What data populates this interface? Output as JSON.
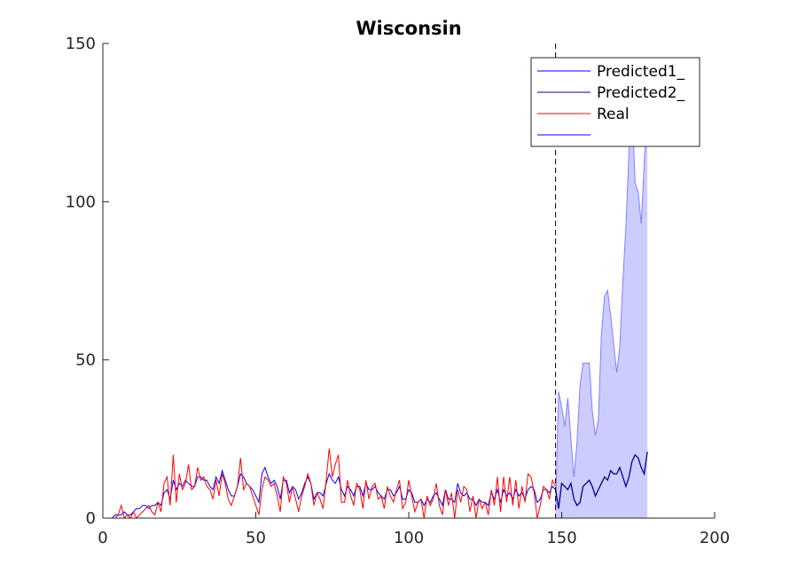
{
  "chart_data": {
    "type": "line",
    "title": "Wisconsin",
    "xlabel": "",
    "ylabel": "",
    "xlim": [
      0,
      200
    ],
    "ylim": [
      0,
      150
    ],
    "x_ticks": [
      0,
      50,
      100,
      150,
      200
    ],
    "y_ticks": [
      0,
      50,
      100,
      150
    ],
    "grid": false,
    "legend_position": "top-right",
    "forecast_start": 148,
    "colors": {
      "predicted1": "#0000ff",
      "predicted2": "#00008b",
      "real": "#ff0000",
      "band_fill": "#ccccff",
      "band_edge": "#8080ff",
      "divider": "#000000"
    },
    "series": [
      {
        "key": "real",
        "name": "Real",
        "x": [
          1,
          2,
          3,
          4,
          5,
          6,
          7,
          8,
          9,
          10,
          11,
          12,
          13,
          14,
          15,
          16,
          17,
          18,
          19,
          20,
          21,
          22,
          23,
          24,
          25,
          26,
          27,
          28,
          29,
          30,
          31,
          32,
          33,
          34,
          35,
          36,
          37,
          38,
          39,
          40,
          41,
          42,
          43,
          44,
          45,
          46,
          47,
          48,
          49,
          50,
          51,
          52,
          53,
          54,
          55,
          56,
          57,
          58,
          59,
          60,
          61,
          62,
          63,
          64,
          65,
          66,
          67,
          68,
          69,
          70,
          71,
          72,
          73,
          74,
          75,
          76,
          77,
          78,
          79,
          80,
          81,
          82,
          83,
          84,
          85,
          86,
          87,
          88,
          89,
          90,
          91,
          92,
          93,
          94,
          95,
          96,
          97,
          98,
          99,
          100,
          101,
          102,
          103,
          104,
          105,
          106,
          107,
          108,
          109,
          110,
          111,
          112,
          113,
          114,
          115,
          116,
          117,
          118,
          119,
          120,
          121,
          122,
          123,
          124,
          125,
          126,
          127,
          128,
          129,
          130,
          131,
          132,
          133,
          134,
          135,
          136,
          137,
          138,
          139,
          140,
          141,
          142,
          143,
          144,
          145,
          146,
          147,
          148
        ],
        "values": [
          0,
          0,
          0,
          0,
          1,
          4,
          0,
          1,
          0,
          2,
          0,
          1,
          2,
          3,
          4,
          2,
          1,
          5,
          2,
          11,
          13,
          4,
          20,
          5,
          14,
          9,
          11,
          17,
          9,
          10,
          16,
          12,
          13,
          10,
          9,
          6,
          12,
          7,
          14,
          11,
          6,
          4,
          7,
          10,
          19,
          9,
          11,
          10,
          7,
          4,
          1,
          9,
          13,
          12,
          10,
          11,
          7,
          2,
          13,
          11,
          5,
          10,
          6,
          2,
          7,
          10,
          14,
          11,
          4,
          8,
          6,
          3,
          12,
          22,
          13,
          17,
          20,
          5,
          5,
          12,
          7,
          4,
          11,
          9,
          3,
          12,
          6,
          10,
          11,
          6,
          7,
          3,
          10,
          7,
          5,
          9,
          12,
          3,
          5,
          12,
          7,
          2,
          5,
          6,
          0,
          7,
          4,
          6,
          11,
          4,
          1,
          9,
          4,
          8,
          0,
          9,
          5,
          10,
          9,
          2,
          7,
          0,
          6,
          3,
          5,
          1,
          9,
          4,
          13,
          2,
          13,
          5,
          13,
          4,
          12,
          3,
          10,
          5,
          14,
          13,
          8,
          0,
          4,
          10,
          9,
          6,
          12,
          10
        ]
      },
      {
        "key": "predicted1",
        "name": "Predicted1_",
        "x": [
          1,
          2,
          3,
          4,
          5,
          6,
          7,
          8,
          9,
          10,
          11,
          12,
          13,
          14,
          15,
          16,
          17,
          18,
          19,
          20,
          21,
          22,
          23,
          24,
          25,
          26,
          27,
          28,
          29,
          30,
          31,
          32,
          33,
          34,
          35,
          36,
          37,
          38,
          39,
          40,
          41,
          42,
          43,
          44,
          45,
          46,
          47,
          48,
          49,
          50,
          51,
          52,
          53,
          54,
          55,
          56,
          57,
          58,
          59,
          60,
          61,
          62,
          63,
          64,
          65,
          66,
          67,
          68,
          69,
          70,
          71,
          72,
          73,
          74,
          75,
          76,
          77,
          78,
          79,
          80,
          81,
          82,
          83,
          84,
          85,
          86,
          87,
          88,
          89,
          90,
          91,
          92,
          93,
          94,
          95,
          96,
          97,
          98,
          99,
          100,
          101,
          102,
          103,
          104,
          105,
          106,
          107,
          108,
          109,
          110,
          111,
          112,
          113,
          114,
          115,
          116,
          117,
          118,
          119,
          120,
          121,
          122,
          123,
          124,
          125,
          126,
          127,
          128,
          129,
          130,
          131,
          132,
          133,
          134,
          135,
          136,
          137,
          138,
          139,
          140,
          141,
          142,
          143,
          144,
          145,
          146,
          147,
          148
        ],
        "values": [
          0,
          0,
          0,
          1,
          1,
          1,
          2,
          1,
          1,
          2,
          3,
          3,
          4,
          4,
          3,
          4,
          4,
          5,
          4,
          8,
          9,
          6,
          12,
          9,
          11,
          10,
          12,
          11,
          10,
          10,
          13,
          13,
          12,
          12,
          10,
          9,
          13,
          11,
          15,
          12,
          9,
          7,
          7,
          10,
          14,
          13,
          11,
          10,
          9,
          7,
          5,
          14,
          16,
          13,
          11,
          12,
          10,
          6,
          12,
          12,
          8,
          10,
          9,
          6,
          8,
          11,
          13,
          11,
          6,
          8,
          8,
          7,
          11,
          14,
          12,
          11,
          13,
          9,
          7,
          10,
          9,
          7,
          10,
          10,
          7,
          11,
          9,
          9,
          10,
          8,
          7,
          6,
          9,
          9,
          7,
          8,
          10,
          6,
          6,
          9,
          8,
          5,
          5,
          6,
          4,
          6,
          5,
          7,
          8,
          6,
          4,
          9,
          6,
          6,
          5,
          11,
          8,
          7,
          8,
          6,
          6,
          4,
          6,
          5,
          5,
          4,
          8,
          6,
          9,
          5,
          9,
          7,
          8,
          6,
          9,
          7,
          8,
          6,
          9,
          10,
          9,
          5,
          6,
          9,
          9,
          8,
          10,
          9
        ]
      },
      {
        "key": "predicted2",
        "name": "Predicted2_",
        "x": [
          148,
          149,
          150,
          151,
          152,
          153,
          154,
          155,
          156,
          157,
          158,
          159,
          160,
          161,
          162,
          163,
          164,
          165,
          166,
          167,
          168,
          169,
          170,
          171,
          172,
          173,
          174,
          175,
          176,
          177,
          178
        ],
        "values": [
          9,
          3,
          11,
          10,
          9,
          11,
          6,
          4,
          5,
          10,
          11,
          12,
          10,
          7,
          9,
          11,
          13,
          12,
          15,
          14,
          14,
          16,
          13,
          10,
          13,
          18,
          20,
          19,
          16,
          14,
          21
        ]
      },
      {
        "key": "band",
        "name": "",
        "x": [
          148,
          149,
          150,
          151,
          152,
          153,
          154,
          155,
          156,
          157,
          158,
          159,
          160,
          161,
          162,
          163,
          164,
          165,
          166,
          167,
          168,
          169,
          170,
          171,
          172,
          173,
          174,
          175,
          176,
          177,
          178
        ],
        "upper": [
          3,
          40,
          35,
          29,
          38,
          25,
          13,
          24,
          42,
          49,
          49,
          49,
          34,
          26,
          31,
          58,
          70,
          72,
          64,
          55,
          46,
          54,
          75,
          92,
          116,
          130,
          106,
          103,
          93,
          112,
          132
        ],
        "lower": [
          0,
          0,
          0,
          0,
          0,
          0,
          0,
          0,
          0,
          0,
          0,
          0,
          0,
          0,
          0,
          0,
          0,
          0,
          0,
          0,
          0,
          0,
          0,
          0,
          0,
          0,
          0,
          0,
          0,
          0,
          0
        ]
      }
    ]
  }
}
